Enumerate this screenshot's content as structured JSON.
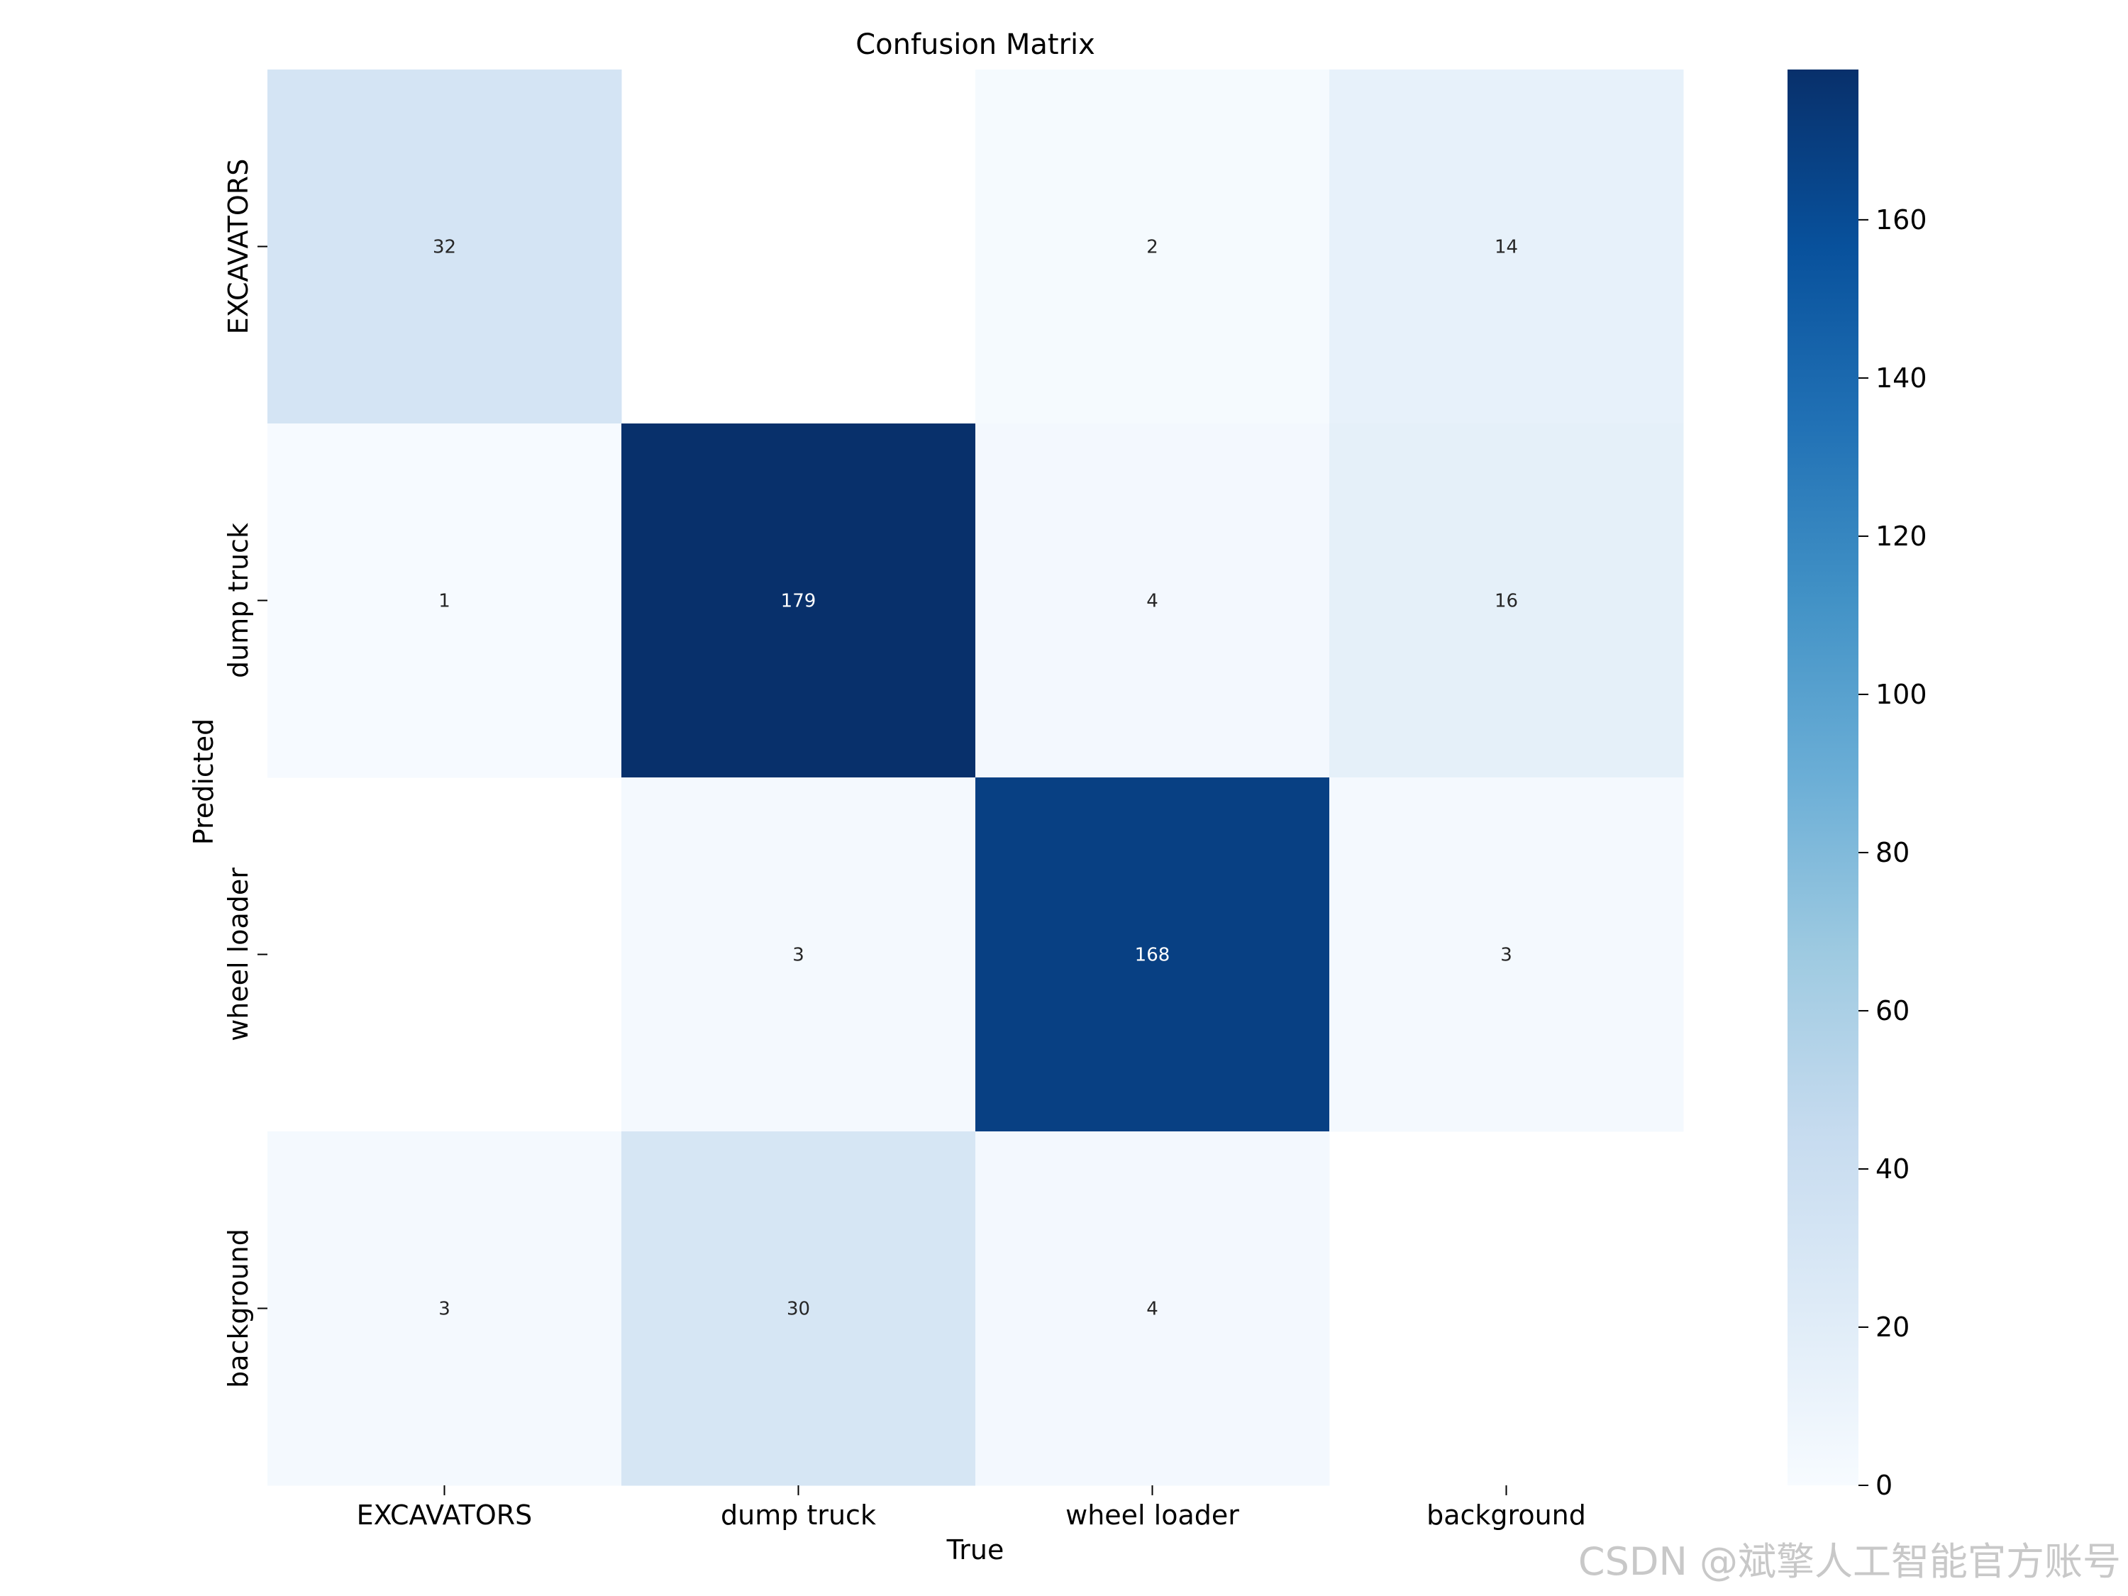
{
  "chart_data": {
    "type": "heatmap",
    "title": "Confusion Matrix",
    "xlabel": "True",
    "ylabel": "Predicted",
    "x_categories": [
      "EXCAVATORS",
      "dump truck",
      "wheel loader",
      "background"
    ],
    "y_categories": [
      "EXCAVATORS",
      "dump truck",
      "wheel loader",
      "background"
    ],
    "values": [
      [
        32,
        null,
        2,
        14
      ],
      [
        1,
        179,
        4,
        16
      ],
      [
        null,
        3,
        168,
        3
      ],
      [
        3,
        30,
        4,
        null
      ]
    ],
    "colorbar": {
      "colormap": "Blues",
      "range": [
        0,
        179
      ],
      "ticks": [
        0,
        20,
        40,
        60,
        80,
        100,
        120,
        140,
        160
      ]
    }
  },
  "watermark": "CSDN @斌擎人工智能官方账号"
}
